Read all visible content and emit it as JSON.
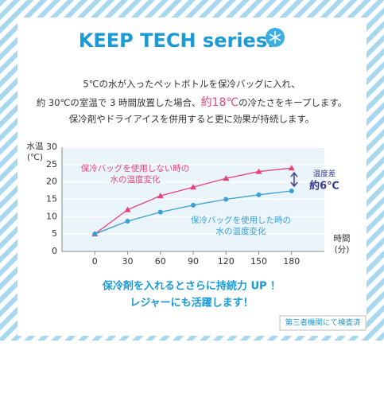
{
  "header": {
    "title": "KEEP TECH series."
  },
  "intro": {
    "line1": "5℃の水が入ったペットボトルを保冷バッグに入れ、",
    "line2": [
      "約 30℃の室温で 3 時間放置した場合、",
      "約18℃",
      "の冷たさをキープします。"
    ],
    "line3": "保冷剤やドライアイスを併用すると更に効果が持続します。"
  },
  "chart_data": {
    "type": "line",
    "y_label": [
      "水温",
      "(℃)"
    ],
    "x_label": [
      "時間",
      "(分)"
    ],
    "x": [
      0,
      30,
      60,
      90,
      120,
      150,
      180
    ],
    "xlim": [
      -30,
      210
    ],
    "xticks": [
      0,
      30,
      60,
      90,
      120,
      150,
      180
    ],
    "ylim": [
      0,
      30
    ],
    "yticks": [
      0,
      5,
      10,
      15,
      20,
      25,
      30
    ],
    "grid": true,
    "series": [
      {
        "name": [
          "保冷バッグを使用しない時の",
          "水の温度変化"
        ],
        "color": "#e8427c",
        "marker": "triangle",
        "values": [
          5,
          12,
          16,
          18.5,
          21,
          23,
          24
        ]
      },
      {
        "name": [
          "保冷バッグを使用した時の",
          "水の温度変化"
        ],
        "color": "#3a9fd4",
        "marker": "circle",
        "values": [
          5,
          8.7,
          11.3,
          13.3,
          15,
          16.3,
          17.4
        ]
      }
    ],
    "annotation": [
      "温度差",
      "約6℃"
    ]
  },
  "footer": {
    "lines": [
      "保冷剤を入れるとさらに持続力 UP ！",
      "レジャーにも活躍します！"
    ],
    "note": "第三者機関にて検査済"
  }
}
